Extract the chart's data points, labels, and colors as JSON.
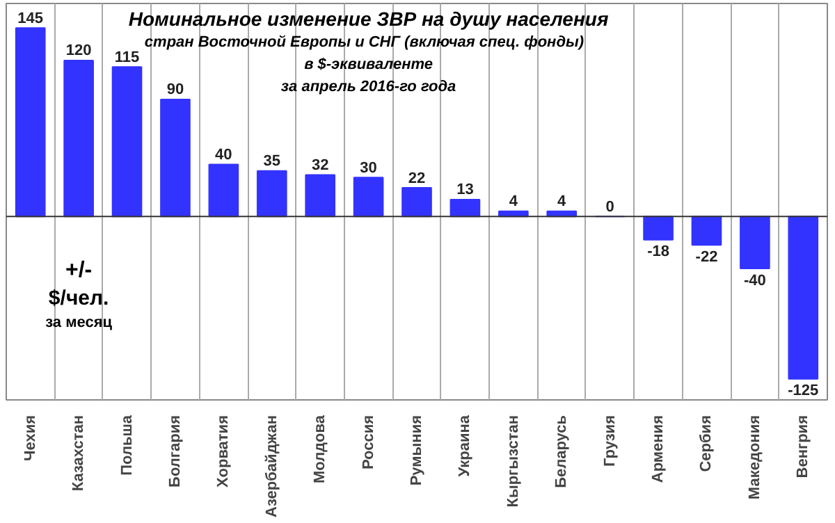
{
  "chart_data": {
    "type": "bar",
    "title": "Номинальное изменение ЗВР на душу населения",
    "subtitle": "стран Восточной  Европы  и СНГ (включая спец. фонды)\nв $-эквиваленте\nза апрель 2016-го года",
    "categories": [
      "Чехия",
      "Казахстан",
      "Польша",
      "Болгария",
      "Хорватия",
      "Азербайджан",
      "Молдова",
      "Россия",
      "Румыния",
      "Украина",
      "Кыргызстан",
      "Беларусь",
      "Грузия",
      "Армения",
      "Сербия",
      "Македония",
      "Венгрия"
    ],
    "values": [
      145,
      120,
      115,
      90,
      40,
      35,
      32,
      30,
      22,
      13,
      4,
      4,
      0,
      -18,
      -22,
      -40,
      -125
    ],
    "color": "#3333ff",
    "data_labels": true,
    "grid": "x",
    "annotations": [
      "+/-\n$/чел.\nза месяц"
    ]
  }
}
